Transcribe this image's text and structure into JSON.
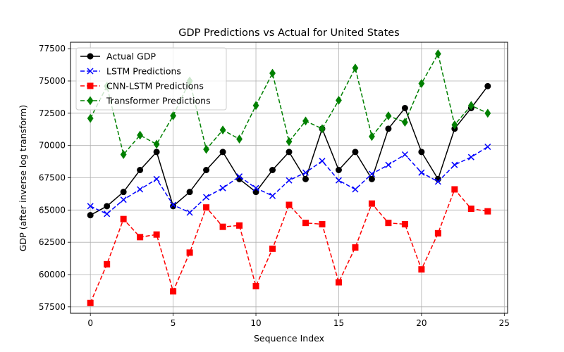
{
  "chart_data": {
    "type": "line",
    "title": "GDP Predictions vs Actual for United States",
    "xlabel": "Sequence Index",
    "ylabel": "GDP (after inverse log transform)",
    "xlim": [
      -1.2,
      25.2
    ],
    "ylim": [
      57000,
      78000
    ],
    "xticks": [
      0,
      5,
      10,
      15,
      20,
      25
    ],
    "yticks": [
      57500,
      60000,
      62500,
      65000,
      67500,
      70000,
      72500,
      75000,
      77500
    ],
    "grid": true,
    "legend_position": "top-left",
    "x": [
      0,
      1,
      2,
      3,
      4,
      5,
      6,
      7,
      8,
      9,
      10,
      11,
      12,
      13,
      14,
      15,
      16,
      17,
      18,
      19,
      20,
      21,
      22,
      23,
      24
    ],
    "series": [
      {
        "name": "Actual GDP",
        "color": "#000000",
        "linestyle": "solid",
        "marker": "circle",
        "values": [
          64600,
          65300,
          66400,
          68100,
          69500,
          65300,
          66400,
          68100,
          69500,
          67400,
          66400,
          68100,
          69500,
          67400,
          71300,
          68100,
          69500,
          67400,
          71300,
          72900,
          69500,
          67400,
          71300,
          72900,
          74600
        ]
      },
      {
        "name": "LSTM Predictions",
        "color": "#0000ff",
        "linestyle": "dashed",
        "marker": "x",
        "values": [
          65300,
          64700,
          65800,
          66600,
          67400,
          65400,
          64800,
          66000,
          66700,
          67600,
          66700,
          66100,
          67300,
          67900,
          68800,
          67300,
          66600,
          67800,
          68500,
          69300,
          67900,
          67200,
          68500,
          69100,
          69900
        ]
      },
      {
        "name": "CNN-LSTM Predictions",
        "color": "#ff0000",
        "linestyle": "dashed",
        "marker": "square",
        "values": [
          57800,
          60800,
          64300,
          62900,
          63100,
          58700,
          61700,
          65200,
          63700,
          63800,
          59100,
          62000,
          65400,
          64000,
          63900,
          59400,
          62100,
          65500,
          64000,
          63900,
          60400,
          63200,
          66600,
          65100,
          64900
        ]
      },
      {
        "name": "Transformer Predictions",
        "color": "#008000",
        "linestyle": "dashed",
        "marker": "diamond",
        "values": [
          72100,
          74600,
          69300,
          70800,
          70100,
          72300,
          75000,
          69700,
          71200,
          70500,
          73100,
          75600,
          70300,
          71900,
          71300,
          73500,
          76000,
          70700,
          72300,
          71800,
          74800,
          77100,
          71600,
          73100,
          72500
        ]
      }
    ]
  }
}
